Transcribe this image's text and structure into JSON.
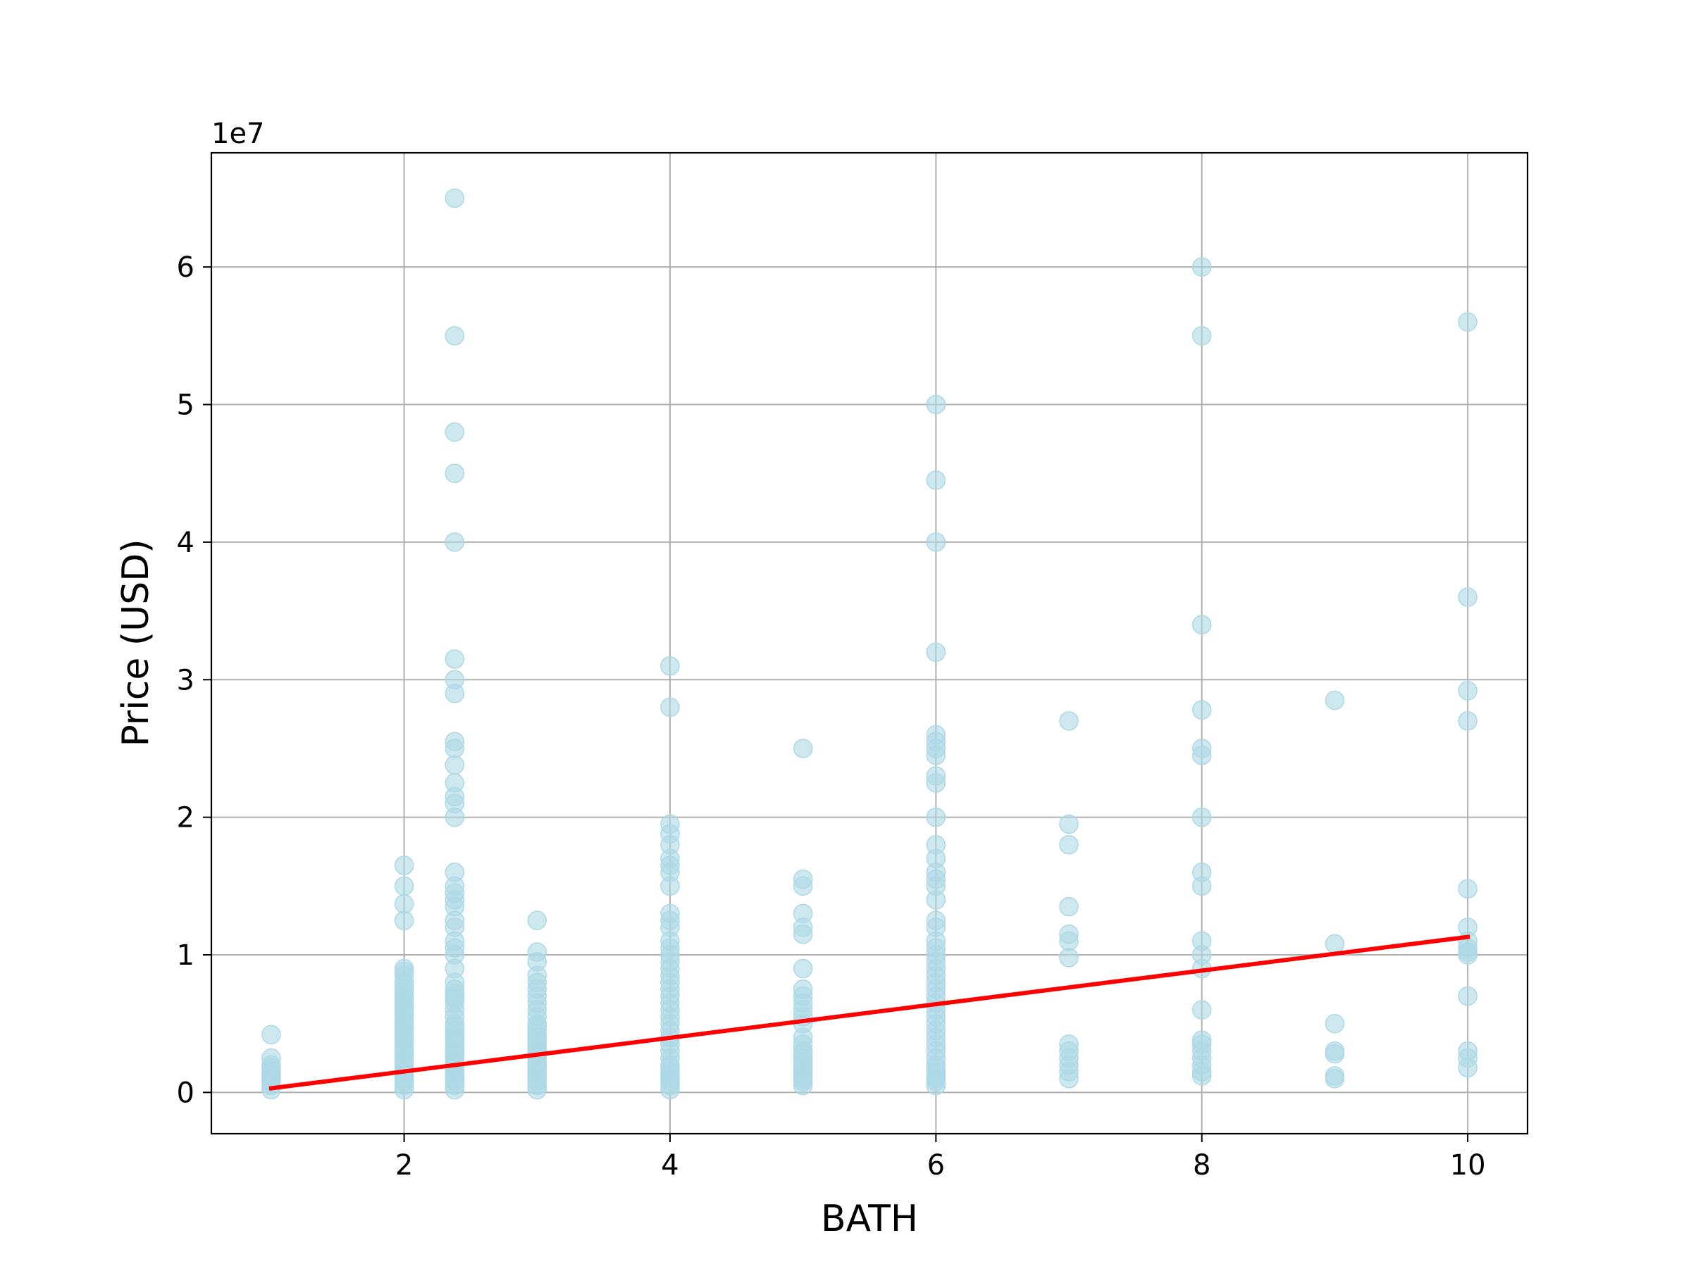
{
  "chart_data": {
    "type": "scatter",
    "xlabel": "BATH",
    "ylabel": "Price (USD)",
    "y_offset_label": "1e7",
    "xlim": [
      0.55,
      10.45
    ],
    "ylim": [
      -3.0,
      68.3
    ],
    "y_unit_note": "y values in units of 1e7 USD",
    "x_ticks": [
      2,
      4,
      6,
      8,
      10
    ],
    "y_ticks": [
      0,
      1,
      2,
      3,
      4,
      5,
      6
    ],
    "grid": true,
    "colors": {
      "points": "#add8e6",
      "fit_line": "#ff0000",
      "grid": "#b0b0b0"
    },
    "fit_line": {
      "x": [
        1,
        10
      ],
      "y": [
        0.03,
        1.13
      ]
    },
    "points": [
      [
        1,
        0.02
      ],
      [
        1,
        0.05
      ],
      [
        1,
        0.08
      ],
      [
        1,
        0.1
      ],
      [
        1,
        0.12
      ],
      [
        1,
        0.15
      ],
      [
        1,
        0.18
      ],
      [
        1,
        0.2
      ],
      [
        1,
        0.25
      ],
      [
        1,
        0.42
      ],
      [
        2,
        0.02
      ],
      [
        2,
        0.05
      ],
      [
        2,
        0.08
      ],
      [
        2,
        0.1
      ],
      [
        2,
        0.12
      ],
      [
        2,
        0.15
      ],
      [
        2,
        0.18
      ],
      [
        2,
        0.2
      ],
      [
        2,
        0.22
      ],
      [
        2,
        0.25
      ],
      [
        2,
        0.28
      ],
      [
        2,
        0.3
      ],
      [
        2,
        0.32
      ],
      [
        2,
        0.35
      ],
      [
        2,
        0.38
      ],
      [
        2,
        0.4
      ],
      [
        2,
        0.42
      ],
      [
        2,
        0.45
      ],
      [
        2,
        0.48
      ],
      [
        2,
        0.5
      ],
      [
        2,
        0.52
      ],
      [
        2,
        0.55
      ],
      [
        2,
        0.58
      ],
      [
        2,
        0.6
      ],
      [
        2,
        0.62
      ],
      [
        2,
        0.65
      ],
      [
        2,
        0.68
      ],
      [
        2,
        0.7
      ],
      [
        2,
        0.72
      ],
      [
        2,
        0.75
      ],
      [
        2,
        0.78
      ],
      [
        2,
        0.8
      ],
      [
        2,
        0.85
      ],
      [
        2,
        0.88
      ],
      [
        2,
        0.9
      ],
      [
        2,
        1.25
      ],
      [
        2,
        1.37
      ],
      [
        2,
        1.5
      ],
      [
        2,
        1.65
      ],
      [
        2.38,
        0.02
      ],
      [
        2.38,
        0.05
      ],
      [
        2.38,
        0.08
      ],
      [
        2.38,
        0.1
      ],
      [
        2.38,
        0.12
      ],
      [
        2.38,
        0.15
      ],
      [
        2.38,
        0.18
      ],
      [
        2.38,
        0.2
      ],
      [
        2.38,
        0.22
      ],
      [
        2.38,
        0.25
      ],
      [
        2.38,
        0.28
      ],
      [
        2.38,
        0.3
      ],
      [
        2.38,
        0.32
      ],
      [
        2.38,
        0.35
      ],
      [
        2.38,
        0.38
      ],
      [
        2.38,
        0.4
      ],
      [
        2.38,
        0.42
      ],
      [
        2.38,
        0.45
      ],
      [
        2.38,
        0.48
      ],
      [
        2.38,
        0.5
      ],
      [
        2.38,
        0.55
      ],
      [
        2.38,
        0.6
      ],
      [
        2.38,
        0.65
      ],
      [
        2.38,
        0.68
      ],
      [
        2.38,
        0.7
      ],
      [
        2.38,
        0.72
      ],
      [
        2.38,
        0.75
      ],
      [
        2.38,
        0.8
      ],
      [
        2.38,
        0.9
      ],
      [
        2.38,
        1.0
      ],
      [
        2.38,
        1.05
      ],
      [
        2.38,
        1.1
      ],
      [
        2.38,
        1.2
      ],
      [
        2.38,
        1.25
      ],
      [
        2.38,
        1.35
      ],
      [
        2.38,
        1.4
      ],
      [
        2.38,
        1.45
      ],
      [
        2.38,
        1.5
      ],
      [
        2.38,
        1.6
      ],
      [
        2.38,
        2.0
      ],
      [
        2.38,
        2.1
      ],
      [
        2.38,
        2.15
      ],
      [
        2.38,
        2.25
      ],
      [
        2.38,
        2.38
      ],
      [
        2.38,
        2.5
      ],
      [
        2.38,
        2.55
      ],
      [
        2.38,
        2.9
      ],
      [
        2.38,
        3.0
      ],
      [
        2.38,
        3.15
      ],
      [
        2.38,
        4.0
      ],
      [
        2.38,
        4.5
      ],
      [
        2.38,
        4.8
      ],
      [
        2.38,
        5.5
      ],
      [
        2.38,
        6.5
      ],
      [
        3,
        0.02
      ],
      [
        3,
        0.05
      ],
      [
        3,
        0.08
      ],
      [
        3,
        0.1
      ],
      [
        3,
        0.12
      ],
      [
        3,
        0.15
      ],
      [
        3,
        0.18
      ],
      [
        3,
        0.2
      ],
      [
        3,
        0.22
      ],
      [
        3,
        0.25
      ],
      [
        3,
        0.28
      ],
      [
        3,
        0.3
      ],
      [
        3,
        0.32
      ],
      [
        3,
        0.35
      ],
      [
        3,
        0.38
      ],
      [
        3,
        0.4
      ],
      [
        3,
        0.42
      ],
      [
        3,
        0.45
      ],
      [
        3,
        0.48
      ],
      [
        3,
        0.5
      ],
      [
        3,
        0.55
      ],
      [
        3,
        0.6
      ],
      [
        3,
        0.65
      ],
      [
        3,
        0.7
      ],
      [
        3,
        0.75
      ],
      [
        3,
        0.8
      ],
      [
        3,
        0.85
      ],
      [
        3,
        0.95
      ],
      [
        3,
        1.02
      ],
      [
        3,
        1.25
      ],
      [
        4,
        0.02
      ],
      [
        4,
        0.05
      ],
      [
        4,
        0.08
      ],
      [
        4,
        0.1
      ],
      [
        4,
        0.12
      ],
      [
        4,
        0.15
      ],
      [
        4,
        0.18
      ],
      [
        4,
        0.2
      ],
      [
        4,
        0.25
      ],
      [
        4,
        0.3
      ],
      [
        4,
        0.35
      ],
      [
        4,
        0.4
      ],
      [
        4,
        0.45
      ],
      [
        4,
        0.5
      ],
      [
        4,
        0.55
      ],
      [
        4,
        0.6
      ],
      [
        4,
        0.65
      ],
      [
        4,
        0.7
      ],
      [
        4,
        0.75
      ],
      [
        4,
        0.8
      ],
      [
        4,
        0.85
      ],
      [
        4,
        0.9
      ],
      [
        4,
        0.95
      ],
      [
        4,
        1.0
      ],
      [
        4,
        1.05
      ],
      [
        4,
        1.1
      ],
      [
        4,
        1.2
      ],
      [
        4,
        1.25
      ],
      [
        4,
        1.3
      ],
      [
        4,
        1.5
      ],
      [
        4,
        1.6
      ],
      [
        4,
        1.65
      ],
      [
        4,
        1.7
      ],
      [
        4,
        1.8
      ],
      [
        4,
        1.88
      ],
      [
        4,
        1.95
      ],
      [
        4,
        2.8
      ],
      [
        4,
        3.1
      ],
      [
        5,
        0.05
      ],
      [
        5,
        0.08
      ],
      [
        5,
        0.1
      ],
      [
        5,
        0.12
      ],
      [
        5,
        0.15
      ],
      [
        5,
        0.18
      ],
      [
        5,
        0.2
      ],
      [
        5,
        0.22
      ],
      [
        5,
        0.25
      ],
      [
        5,
        0.28
      ],
      [
        5,
        0.3
      ],
      [
        5,
        0.35
      ],
      [
        5,
        0.4
      ],
      [
        5,
        0.5
      ],
      [
        5,
        0.55
      ],
      [
        5,
        0.6
      ],
      [
        5,
        0.65
      ],
      [
        5,
        0.7
      ],
      [
        5,
        0.75
      ],
      [
        5,
        0.9
      ],
      [
        5,
        1.15
      ],
      [
        5,
        1.2
      ],
      [
        5,
        1.3
      ],
      [
        5,
        1.5
      ],
      [
        5,
        1.55
      ],
      [
        5,
        2.5
      ],
      [
        6,
        0.05
      ],
      [
        6,
        0.08
      ],
      [
        6,
        0.1
      ],
      [
        6,
        0.12
      ],
      [
        6,
        0.15
      ],
      [
        6,
        0.18
      ],
      [
        6,
        0.2
      ],
      [
        6,
        0.25
      ],
      [
        6,
        0.3
      ],
      [
        6,
        0.35
      ],
      [
        6,
        0.4
      ],
      [
        6,
        0.45
      ],
      [
        6,
        0.5
      ],
      [
        6,
        0.55
      ],
      [
        6,
        0.6
      ],
      [
        6,
        0.65
      ],
      [
        6,
        0.7
      ],
      [
        6,
        0.75
      ],
      [
        6,
        0.8
      ],
      [
        6,
        0.85
      ],
      [
        6,
        0.9
      ],
      [
        6,
        0.95
      ],
      [
        6,
        1.0
      ],
      [
        6,
        1.05
      ],
      [
        6,
        1.1
      ],
      [
        6,
        1.2
      ],
      [
        6,
        1.25
      ],
      [
        6,
        1.4
      ],
      [
        6,
        1.5
      ],
      [
        6,
        1.55
      ],
      [
        6,
        1.6
      ],
      [
        6,
        1.7
      ],
      [
        6,
        1.8
      ],
      [
        6,
        2.0
      ],
      [
        6,
        2.25
      ],
      [
        6,
        2.3
      ],
      [
        6,
        2.45
      ],
      [
        6,
        2.5
      ],
      [
        6,
        2.55
      ],
      [
        6,
        2.6
      ],
      [
        6,
        3.2
      ],
      [
        6,
        4.0
      ],
      [
        6,
        4.45
      ],
      [
        6,
        5.0
      ],
      [
        7,
        0.1
      ],
      [
        7,
        0.15
      ],
      [
        7,
        0.2
      ],
      [
        7,
        0.25
      ],
      [
        7,
        0.3
      ],
      [
        7,
        0.35
      ],
      [
        7,
        0.98
      ],
      [
        7,
        1.1
      ],
      [
        7,
        1.15
      ],
      [
        7,
        1.35
      ],
      [
        7,
        1.8
      ],
      [
        7,
        1.95
      ],
      [
        7,
        2.7
      ],
      [
        8,
        0.12
      ],
      [
        8,
        0.15
      ],
      [
        8,
        0.2
      ],
      [
        8,
        0.25
      ],
      [
        8,
        0.3
      ],
      [
        8,
        0.35
      ],
      [
        8,
        0.38
      ],
      [
        8,
        0.6
      ],
      [
        8,
        0.9
      ],
      [
        8,
        1.0
      ],
      [
        8,
        1.1
      ],
      [
        8,
        1.5
      ],
      [
        8,
        1.6
      ],
      [
        8,
        2.0
      ],
      [
        8,
        2.45
      ],
      [
        8,
        2.5
      ],
      [
        8,
        2.78
      ],
      [
        8,
        3.4
      ],
      [
        8,
        5.5
      ],
      [
        8,
        6.0
      ],
      [
        9,
        0.1
      ],
      [
        9,
        0.12
      ],
      [
        9,
        0.28
      ],
      [
        9,
        0.3
      ],
      [
        9,
        0.5
      ],
      [
        9,
        1.08
      ],
      [
        9,
        2.85
      ],
      [
        10,
        0.18
      ],
      [
        10,
        0.25
      ],
      [
        10,
        0.3
      ],
      [
        10,
        0.7
      ],
      [
        10,
        1.0
      ],
      [
        10,
        1.02
      ],
      [
        10,
        1.05
      ],
      [
        10,
        1.1
      ],
      [
        10,
        1.2
      ],
      [
        10,
        1.48
      ],
      [
        10,
        2.7
      ],
      [
        10,
        2.92
      ],
      [
        10,
        3.6
      ],
      [
        10,
        5.6
      ]
    ]
  }
}
